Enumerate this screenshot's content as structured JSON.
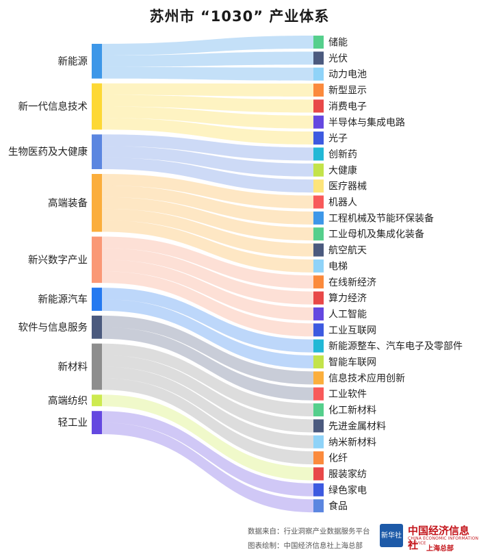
{
  "title": "苏州市 “1030” 产业体系",
  "chart_data": {
    "type": "sankey",
    "sources": [
      {
        "name": "新能源",
        "color": "#3d97e8",
        "targets": [
          "储能",
          "光伏",
          "动力电池"
        ]
      },
      {
        "name": "新一代信息技术",
        "color": "#fdd835",
        "targets": [
          "新型显示",
          "消费电子",
          "半导体与集成电路",
          "光子"
        ]
      },
      {
        "name": "生物医药及大健康",
        "color": "#5b86e0",
        "targets": [
          "创新药",
          "大健康",
          "医疗器械"
        ]
      },
      {
        "name": "高端装备",
        "color": "#fbae3c",
        "targets": [
          "机器人",
          "工程机械及节能环保装备",
          "工业母机及集成化装备",
          "航空航天",
          "电梯"
        ]
      },
      {
        "name": "新兴数字产业",
        "color": "#fa9876",
        "targets": [
          "在线新经济",
          "算力经济",
          "人工智能",
          "工业互联网"
        ]
      },
      {
        "name": "新能源汽车",
        "color": "#2479f0",
        "targets": [
          "新能源整车、汽车电子及零部件",
          "智能车联网"
        ]
      },
      {
        "name": "软件与信息服务",
        "color": "#4b5a7e",
        "targets": [
          "信息技术应用创新",
          "工业软件"
        ]
      },
      {
        "name": "新材料",
        "color": "#8d8d8d",
        "targets": [
          "化工新材料",
          "先进金属材料",
          "纳米新材料",
          "化纤"
        ]
      },
      {
        "name": "高端纺织",
        "color": "#cdea4f",
        "targets": [
          "服装家纺"
        ]
      },
      {
        "name": "轻工业",
        "color": "#6448e0",
        "targets": [
          "绿色家电",
          "食品"
        ]
      }
    ],
    "targets": [
      {
        "name": "储能",
        "color": "#55cf8c"
      },
      {
        "name": "光伏",
        "color": "#4b5a7e"
      },
      {
        "name": "动力电池",
        "color": "#8fd3f8"
      },
      {
        "name": "新型显示",
        "color": "#fb8a3c"
      },
      {
        "name": "消费电子",
        "color": "#e84848"
      },
      {
        "name": "半导体与集成电路",
        "color": "#6448e0"
      },
      {
        "name": "光子",
        "color": "#3d5ae0"
      },
      {
        "name": "创新药",
        "color": "#22b8d6"
      },
      {
        "name": "大健康",
        "color": "#c3e34a"
      },
      {
        "name": "医疗器械",
        "color": "#fde47a"
      },
      {
        "name": "机器人",
        "color": "#f85a5a"
      },
      {
        "name": "工程机械及节能环保装备",
        "color": "#3d97e8"
      },
      {
        "name": "工业母机及集成化装备",
        "color": "#55cf8c"
      },
      {
        "name": "航空航天",
        "color": "#4b5a7e"
      },
      {
        "name": "电梯",
        "color": "#8fd3f8"
      },
      {
        "name": "在线新经济",
        "color": "#fb8a3c"
      },
      {
        "name": "算力经济",
        "color": "#e84848"
      },
      {
        "name": "人工智能",
        "color": "#6448e0"
      },
      {
        "name": "工业互联网",
        "color": "#3d5ae0"
      },
      {
        "name": "新能源整车、汽车电子及零部件",
        "color": "#22b8d6"
      },
      {
        "name": "智能车联网",
        "color": "#c3e34a"
      },
      {
        "name": "信息技术应用创新",
        "color": "#fbae3c"
      },
      {
        "name": "工业软件",
        "color": "#f85a5a"
      },
      {
        "name": "化工新材料",
        "color": "#55cf8c"
      },
      {
        "name": "先进金属材料",
        "color": "#4b5a7e"
      },
      {
        "name": "纳米新材料",
        "color": "#8fd3f8"
      },
      {
        "name": "化纤",
        "color": "#fb8a3c"
      },
      {
        "name": "服装家纺",
        "color": "#e84848"
      },
      {
        "name": "绿色家电",
        "color": "#3d5ae0"
      },
      {
        "name": "食品",
        "color": "#5b86e0"
      }
    ]
  },
  "footer": {
    "source": "数据来自：行业洞察产业数据服务平台",
    "credit": "图表绘制：中国经济信息社上海总部"
  },
  "logo": {
    "badge": "新华社",
    "name_cn": "中国经济信息社",
    "name_en": "CHINA ECONOMIC INFORMATION SERVICE",
    "branch": "上海总部"
  }
}
